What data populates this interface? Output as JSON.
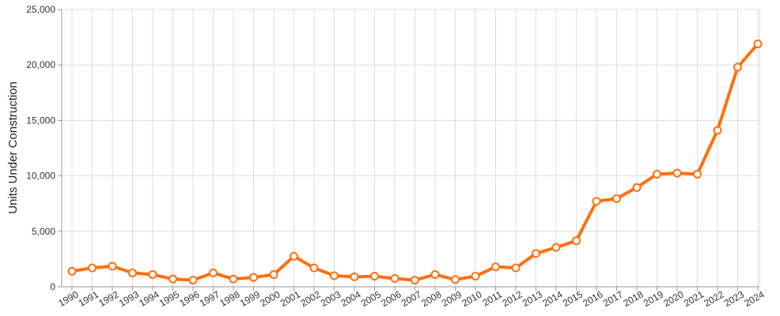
{
  "chart_data": {
    "type": "line",
    "title": "",
    "xlabel": "",
    "ylabel": "Units Under Construction",
    "ylim": [
      0,
      25000
    ],
    "yticks": [
      0,
      5000,
      10000,
      15000,
      20000,
      25000
    ],
    "ytick_labels": [
      "0",
      "5,000",
      "10,000",
      "15,000",
      "20,000",
      "25,000"
    ],
    "grid": true,
    "legend": "none",
    "colors": {
      "line": "#ff7010",
      "marker_fill": "#ffffff",
      "grid": "#dddddd"
    },
    "x": [
      "1990",
      "1991",
      "1992",
      "1993",
      "1994",
      "1995",
      "1996",
      "1997",
      "1998",
      "1999",
      "2000",
      "2001",
      "2002",
      "2003",
      "2004",
      "2005",
      "2006",
      "2007",
      "2008",
      "2009",
      "2010",
      "2011",
      "2012",
      "2013",
      "2014",
      "2015",
      "2016",
      "2017",
      "2018",
      "2019",
      "2020",
      "2021",
      "2022",
      "2023",
      "2024"
    ],
    "series": [
      {
        "values": [
          1400,
          1700,
          1850,
          1250,
          1100,
          700,
          600,
          1250,
          700,
          850,
          1100,
          2750,
          1700,
          1000,
          900,
          950,
          750,
          600,
          1100,
          650,
          950,
          1800,
          1700,
          3000,
          3550,
          4150,
          7700,
          7950,
          8950,
          10150,
          10250,
          10150,
          14100,
          19800,
          21900
        ]
      }
    ]
  }
}
